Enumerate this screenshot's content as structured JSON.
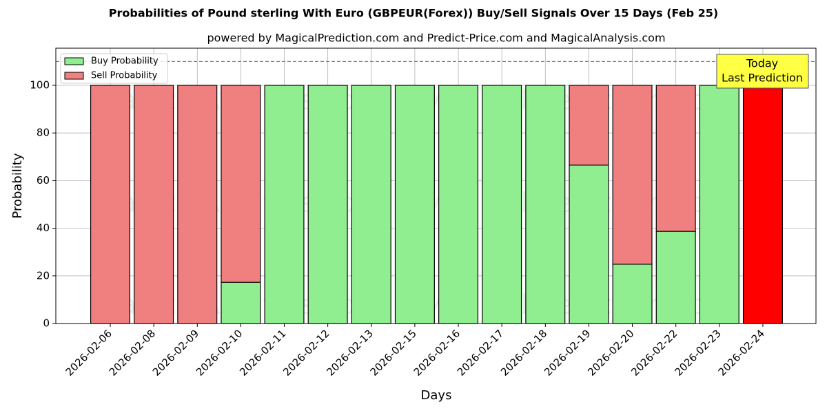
{
  "chart_data": {
    "type": "stacked-bar",
    "title": "Probabilities of Pound sterling With Euro (GBPEUR(Forex)) Buy/Sell Signals Over 15 Days (Feb 25)",
    "subtitle": "powered by MagicalPrediction.com and Predict-Price.com and MagicalAnalysis.com",
    "x_label": "Days",
    "y_label": "Probability",
    "categories": [
      "2026-02-06",
      "2026-02-08",
      "2026-02-09",
      "2026-02-10",
      "2026-02-11",
      "2026-02-12",
      "2026-02-13",
      "2026-02-15",
      "2026-02-16",
      "2026-02-17",
      "2026-02-18",
      "2026-02-19",
      "2026-02-20",
      "2026-02-22",
      "2026-02-23",
      "2026-02-24"
    ],
    "series": [
      {
        "name": "Buy Probability",
        "color": "#90ee90",
        "values": [
          0,
          0,
          0,
          17.3,
          100,
          100,
          100,
          100,
          100,
          100,
          100,
          66.5,
          24.9,
          38.7,
          100,
          0
        ]
      },
      {
        "name": "Sell Probability",
        "color": "#f08080",
        "values": [
          100,
          100,
          100,
          82.7,
          0,
          0,
          0,
          0,
          0,
          0,
          0,
          33.5,
          75.1,
          61.3,
          0,
          100
        ]
      }
    ],
    "highlight_color": "#ff0000",
    "annotation": [
      "Today",
      "Last Prediction"
    ],
    "reference_line": 110,
    "watermarks": [
      "MagicalAnalysis.com",
      "MagicalPrediction.com"
    ],
    "ylim": [
      0,
      115.6
    ],
    "yticks": [
      0,
      20,
      40,
      60,
      80,
      100
    ],
    "grid": true,
    "legend": "upper-left"
  }
}
